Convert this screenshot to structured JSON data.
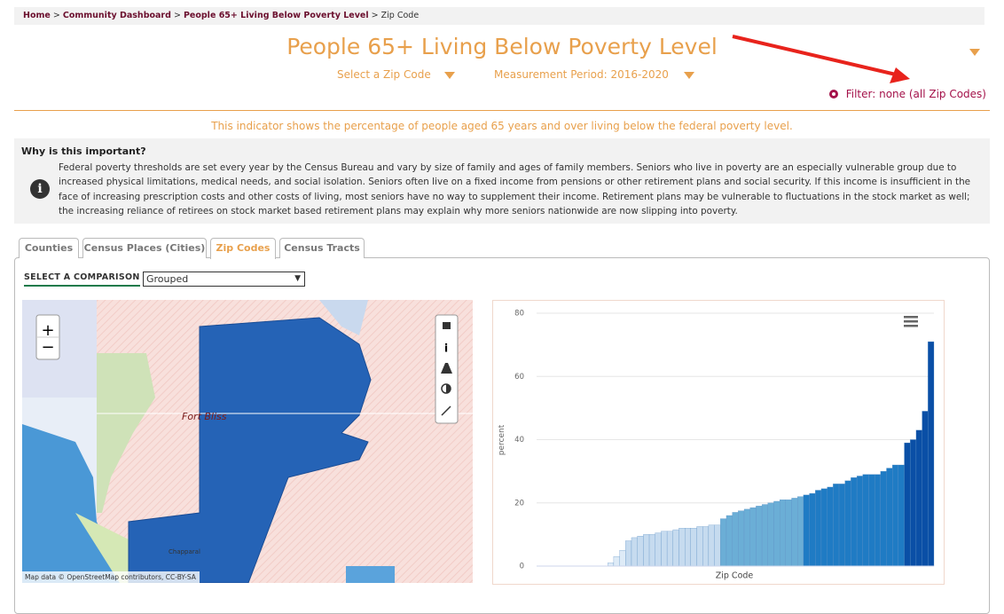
{
  "breadcrumb": {
    "items": [
      "Home",
      "Community Dashboard",
      "People 65+ Living Below Poverty Level"
    ],
    "current": "Zip Code",
    "separator": ">"
  },
  "header": {
    "title": "People 65+ Living Below Poverty Level",
    "location_select": "Select a Zip Code",
    "period_select": "Measurement Period: 2016-2020",
    "filter": "Filter: none (all Zip Codes)"
  },
  "description": "This indicator shows the percentage of people aged 65 years and over living below the federal poverty level.",
  "why": {
    "heading": "Why is this important?",
    "text": "Federal poverty thresholds are set every year by the Census Bureau and vary by size of family and ages of family members. Seniors who live in poverty are an especially vulnerable group due to increased physical limitations, medical needs, and social isolation. Seniors often live on a fixed income from pensions or other retirement plans and social security. If this income is insufficient in the face of increasing prescription costs and other costs of living, most seniors have no way to supplement their income. Retirement plans may be vulnerable to fluctuations in the stock market as well; the increasing reliance of retirees on stock market based retirement plans may explain why more seniors nationwide are now slipping into poverty."
  },
  "tabs": [
    "Counties",
    "Census Places (Cities)",
    "Zip Codes",
    "Census Tracts"
  ],
  "comparison": {
    "label": "SELECT A COMPARISON",
    "selected": "Grouped"
  },
  "map": {
    "zoom_in": "+",
    "zoom_out": "−",
    "labels": [
      "Fort Bliss",
      "Chapparal"
    ],
    "attribution": "Map data © OpenStreetMap contributors, CC-BY-SA"
  },
  "chart_data": {
    "type": "bar",
    "x_label": "Zip Code",
    "y_label": "percent",
    "ylim": [
      0,
      80
    ],
    "yticks": [
      0,
      20,
      40,
      60,
      80
    ],
    "grid": true,
    "categories": [
      null,
      null,
      null,
      null,
      null,
      null,
      null,
      null,
      null,
      null,
      null,
      null,
      null,
      null,
      null,
      null,
      null,
      null,
      null,
      null,
      null,
      null,
      null,
      null,
      null,
      null,
      null,
      null,
      null,
      null,
      null,
      null,
      null,
      null,
      null,
      null,
      null,
      null,
      null,
      null,
      null,
      null,
      null,
      null,
      null,
      null,
      null,
      null,
      null,
      null,
      null,
      null,
      null,
      null,
      null,
      null,
      null,
      null,
      null,
      null,
      null,
      null,
      null,
      null,
      null,
      null,
      null
    ],
    "values": [
      0,
      0,
      0,
      0,
      0,
      0,
      0,
      0,
      0,
      0,
      0,
      0,
      1,
      3,
      5,
      8,
      9,
      9.5,
      10,
      10,
      10.5,
      11,
      11,
      11.5,
      12,
      12,
      12,
      12.5,
      12.5,
      13,
      13,
      15,
      16,
      17,
      17.5,
      18,
      18.5,
      19,
      19.5,
      20,
      20.5,
      21,
      21,
      21.5,
      22,
      22.5,
      23,
      24,
      24.5,
      25,
      26,
      26,
      27,
      28,
      28.5,
      29,
      29,
      29,
      30,
      31,
      32,
      32,
      39,
      40,
      43,
      49,
      71
    ],
    "colors": [
      "#deebf7",
      "#deebf7",
      "#deebf7",
      "#deebf7",
      "#deebf7",
      "#deebf7",
      "#deebf7",
      "#deebf7",
      "#deebf7",
      "#deebf7",
      "#deebf7",
      "#deebf7",
      "#deebf7",
      "#deebf7",
      "#deebf7",
      "#c6dbef",
      "#c6dbef",
      "#c6dbef",
      "#c6dbef",
      "#c6dbef",
      "#c6dbef",
      "#c6dbef",
      "#c6dbef",
      "#c6dbef",
      "#c6dbef",
      "#c6dbef",
      "#c6dbef",
      "#c6dbef",
      "#c6dbef",
      "#c6dbef",
      "#c6dbef",
      "#6baed6",
      "#6baed6",
      "#6baed6",
      "#6baed6",
      "#6baed6",
      "#6baed6",
      "#6baed6",
      "#6baed6",
      "#6baed6",
      "#6baed6",
      "#6baed6",
      "#6baed6",
      "#6baed6",
      "#6baed6",
      "#1f7bc4",
      "#1f7bc4",
      "#1f7bc4",
      "#1f7bc4",
      "#1f7bc4",
      "#1f7bc4",
      "#1f7bc4",
      "#1f7bc4",
      "#1f7bc4",
      "#1f7bc4",
      "#1f7bc4",
      "#1f7bc4",
      "#1f7bc4",
      "#1f7bc4",
      "#1f7bc4",
      "#1f7bc4",
      "#1f7bc4",
      "#0a4fa6",
      "#0a4fa6",
      "#0a4fa6",
      "#0a4fa6",
      "#0a4fa6"
    ]
  }
}
